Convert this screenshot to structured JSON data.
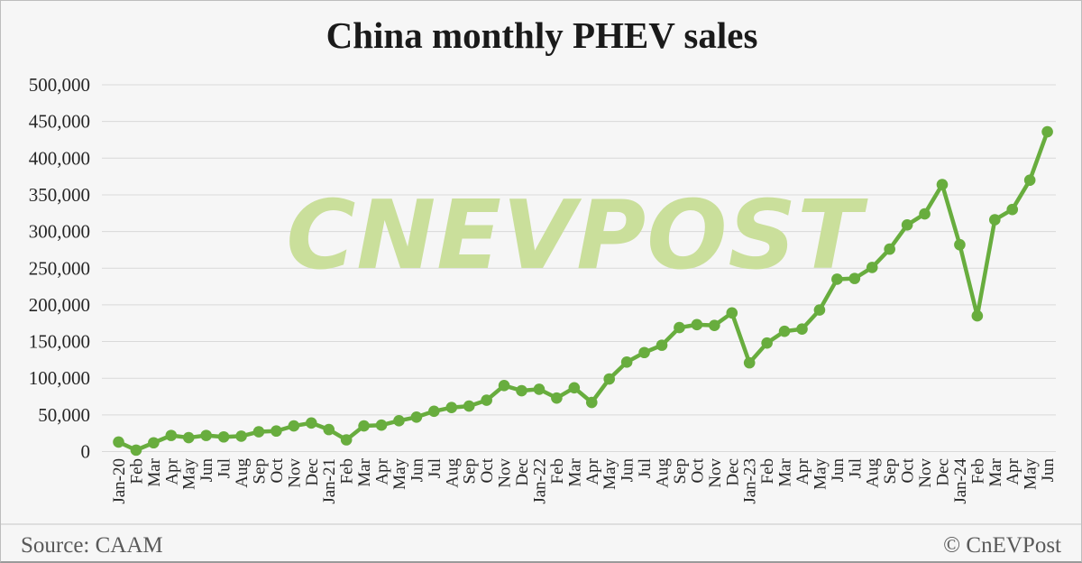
{
  "title": "China monthly PHEV sales",
  "watermark": {
    "text": "CNEVPOST"
  },
  "footer": {
    "source": "Source: CAAM",
    "copyright": "© CnEVPost"
  },
  "colors": {
    "line_green": "#68ad3e",
    "watermark_green": "#cadf9b",
    "gridline_gray": "#d9d9d9",
    "title_black": "#1a1a1a",
    "axis_text": "#262626",
    "footer_gray": "#595959",
    "background": "#f6f6f6"
  },
  "chart_data": {
    "type": "line",
    "title": "China monthly PHEV sales",
    "xlabel": "",
    "ylabel": "",
    "ylim": [
      0,
      500000
    ],
    "ytick_step": 50000,
    "grid": "horizontal",
    "legend": "none",
    "marker": "circle",
    "x": [
      "Jan-20",
      "Feb",
      "Mar",
      "Apr",
      "May",
      "Jun",
      "Jul",
      "Aug",
      "Sep",
      "Oct",
      "Nov",
      "Dec",
      "Jan-21",
      "Feb",
      "Mar",
      "Apr",
      "May",
      "Jun",
      "Jul",
      "Aug",
      "Sep",
      "Oct",
      "Nov",
      "Dec",
      "Jan-22",
      "Feb",
      "Mar",
      "Apr",
      "May",
      "Jun",
      "Jul",
      "Aug",
      "Sep",
      "Oct",
      "Nov",
      "Dec",
      "Jan-23",
      "Feb",
      "Mar",
      "Apr",
      "May",
      "Jun",
      "Jul",
      "Aug",
      "Sep",
      "Oct",
      "Nov",
      "Dec",
      "Jan-24",
      "Feb",
      "Mar",
      "Apr",
      "May",
      "Jun"
    ],
    "series": [
      {
        "name": "PHEV sales",
        "values": [
          13000,
          2000,
          12000,
          22000,
          19000,
          22000,
          20000,
          21000,
          27000,
          28000,
          35000,
          39000,
          30000,
          16000,
          35000,
          36000,
          42000,
          47000,
          55000,
          60000,
          62000,
          70000,
          90000,
          83000,
          85000,
          73000,
          87000,
          67000,
          99000,
          122000,
          135000,
          145000,
          169000,
          173000,
          172000,
          189000,
          121000,
          148000,
          164000,
          167000,
          193000,
          235000,
          236000,
          251000,
          276000,
          309000,
          324000,
          364000,
          282000,
          185000,
          316000,
          330000,
          370000,
          436000
        ]
      }
    ]
  }
}
